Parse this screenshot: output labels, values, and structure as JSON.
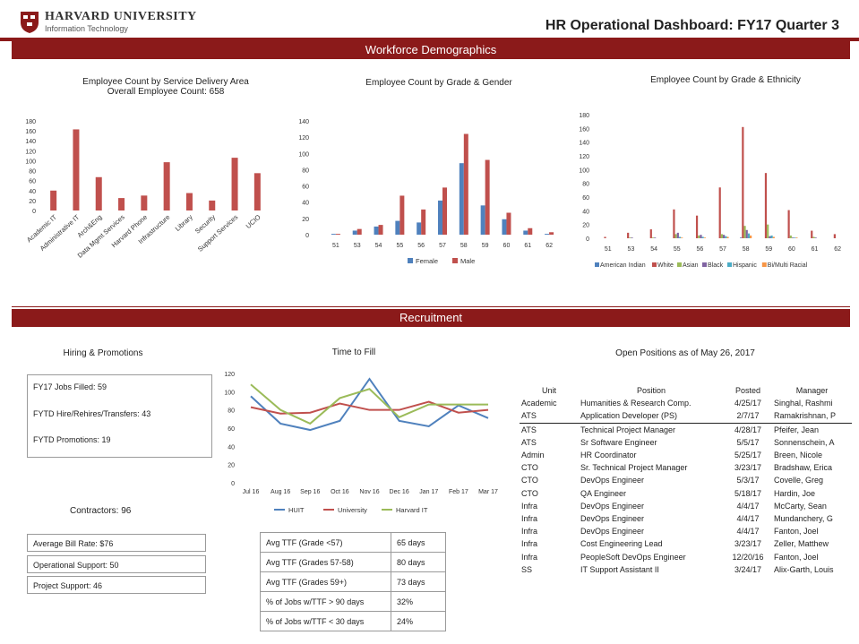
{
  "header": {
    "logo_name": "HARVARD UNIVERSITY",
    "logo_sub": "Information Technology",
    "title": "HR Operational Dashboard:  FY17 Quarter 3"
  },
  "sections": {
    "workforce": "Workforce Demographics",
    "recruitment": "Recruitment"
  },
  "colors": {
    "accent": "#8b1a1a",
    "female": "#4f81bd",
    "male": "#c0504d",
    "green": "#9bbb59",
    "purple": "#8064a2",
    "teal": "#4bacc6",
    "orange": "#f79646"
  },
  "chart_data": [
    {
      "type": "bar",
      "title": "Employee Count by Service Delivery Area",
      "subtitle": "Overall Employee Count: 658",
      "categories": [
        "Academic IT",
        "Administrative IT",
        "Arch&Eng",
        "Data Mgmt Services",
        "Harvard Phone",
        "Infrastructure",
        "Library",
        "Security",
        "Support Services",
        "UCIO"
      ],
      "values": [
        40,
        163,
        67,
        25,
        30,
        97,
        35,
        20,
        106,
        75
      ],
      "ylim": [
        0,
        180
      ],
      "yticks": [
        "0",
        "20",
        "40",
        "60",
        "80",
        "100",
        "120",
        "140",
        "160",
        "180"
      ]
    },
    {
      "type": "bar",
      "title": "Employee Count by Grade & Gender",
      "categories": [
        "51",
        "53",
        "54",
        "55",
        "56",
        "57",
        "58",
        "59",
        "60",
        "61",
        "62"
      ],
      "series": [
        {
          "name": "Female",
          "values": [
            1,
            5,
            10,
            17,
            15,
            42,
            88,
            36,
            19,
            5,
            1
          ]
        },
        {
          "name": "Male",
          "values": [
            1,
            7,
            12,
            48,
            31,
            58,
            124,
            92,
            27,
            8,
            3
          ]
        }
      ],
      "ylim": [
        0,
        140
      ],
      "yticks": [
        "0",
        "20",
        "40",
        "60",
        "80",
        "100",
        "120",
        "140"
      ]
    },
    {
      "type": "bar",
      "title": "Employee Count by Grade & Ethnicity",
      "categories": [
        "51",
        "53",
        "54",
        "55",
        "56",
        "57",
        "58",
        "59",
        "60",
        "61",
        "62"
      ],
      "series": [
        {
          "name": "American Indian",
          "values": [
            0,
            0,
            0,
            0,
            0,
            0,
            1,
            0,
            0,
            0,
            0
          ]
        },
        {
          "name": "White",
          "values": [
            2,
            8,
            13,
            42,
            33,
            74,
            162,
            95,
            41,
            11,
            6
          ]
        },
        {
          "name": "Asian",
          "values": [
            0,
            1,
            1,
            6,
            4,
            6,
            18,
            20,
            4,
            2,
            0
          ]
        },
        {
          "name": "Black",
          "values": [
            0,
            1,
            1,
            8,
            5,
            5,
            12,
            3,
            1,
            1,
            0
          ]
        },
        {
          "name": "Hispanic",
          "values": [
            0,
            0,
            0,
            2,
            2,
            3,
            7,
            4,
            1,
            0,
            0
          ]
        },
        {
          "name": "Bi/Multi Racial",
          "values": [
            0,
            0,
            0,
            1,
            1,
            2,
            4,
            2,
            1,
            0,
            0
          ]
        }
      ],
      "ylim": [
        0,
        180
      ],
      "yticks": [
        "0",
        "20",
        "40",
        "60",
        "80",
        "100",
        "120",
        "140",
        "160",
        "180"
      ]
    },
    {
      "type": "line",
      "title": "Time to Fill",
      "categories": [
        "Jul 16",
        "Aug 16",
        "Sep 16",
        "Oct 16",
        "Nov 16",
        "Dec 16",
        "Jan 17",
        "Feb 17",
        "Mar 17"
      ],
      "series": [
        {
          "name": "HUIT",
          "values": [
            95,
            65,
            58,
            68,
            114,
            68,
            62,
            85,
            71
          ]
        },
        {
          "name": "University",
          "values": [
            83,
            76,
            77,
            87,
            80,
            80,
            89,
            77,
            80
          ]
        },
        {
          "name": "Harvard IT",
          "values": [
            108,
            80,
            65,
            93,
            103,
            72,
            86,
            86,
            86
          ]
        }
      ],
      "ylim": [
        0,
        120
      ],
      "yticks": [
        "0",
        "20",
        "40",
        "60",
        "80",
        "100",
        "120"
      ]
    }
  ],
  "hiring": {
    "title": "Hiring & Promotions",
    "jobs_filled": "FY17 Jobs Filled: 59",
    "transfers": "FYTD Hire/Rehires/Transfers: 43",
    "promotions": "FYTD Promotions: 19",
    "contractors": "Contractors: 96",
    "avg_bill": "Average Bill Rate: $76",
    "op_support": "Operational Support: 50",
    "proj_support": "Project Support: 46"
  },
  "ttf_table": [
    [
      "Avg TTF (Grade <57)",
      "65 days"
    ],
    [
      "Avg TTF (Grades 57-58)",
      "80 days"
    ],
    [
      "Avg TTF (Grades 59+)",
      "73 days"
    ],
    [
      "% of Jobs w/TTF > 90 days",
      "32%"
    ],
    [
      "% of Jobs w/TTF < 30 days",
      "24%"
    ]
  ],
  "open_positions": {
    "title": "Open Positions as of May 26, 2017",
    "headers": [
      "Unit",
      "Position",
      "Posted",
      "Manager"
    ],
    "rows": [
      [
        "Academic",
        "Humanities & Research Comp.",
        "4/25/17",
        "Singhal, Rashmi"
      ],
      [
        "ATS",
        "Application Developer (PS)",
        "2/7/17",
        "Ramakrishnan, P"
      ],
      [
        "ATS",
        "Technical Project Manager",
        "4/28/17",
        "Pfeifer, Jean"
      ],
      [
        "ATS",
        "Sr Software Engineer",
        "5/5/17",
        "Sonnenschein, A"
      ],
      [
        "Admin",
        "HR Coordinator",
        "5/25/17",
        "Breen, Nicole"
      ],
      [
        "CTO",
        "Sr. Technical Project Manager",
        "3/23/17",
        "Bradshaw, Erica"
      ],
      [
        "CTO",
        "DevOps Engineer",
        "5/3/17",
        "Covelle, Greg"
      ],
      [
        "CTO",
        "QA Engineer",
        "5/18/17",
        "Hardin, Joe"
      ],
      [
        "Infra",
        "DevOps Engineer",
        "4/4/17",
        "McCarty, Sean"
      ],
      [
        "Infra",
        "DevOps Engineer",
        "4/4/17",
        "Mundanchery, G"
      ],
      [
        "Infra",
        "DevOps Engineer",
        "4/4/17",
        "Fanton, Joel"
      ],
      [
        "Infra",
        "Cost Engineering Lead",
        "3/23/17",
        "Zeller, Matthew"
      ],
      [
        "Infra",
        "PeopleSoft DevOps Engineer",
        "12/20/16",
        "Fanton, Joel"
      ],
      [
        "SS",
        "IT Support Assistant II",
        "3/24/17",
        "Alix-Garth, Louis"
      ]
    ]
  }
}
